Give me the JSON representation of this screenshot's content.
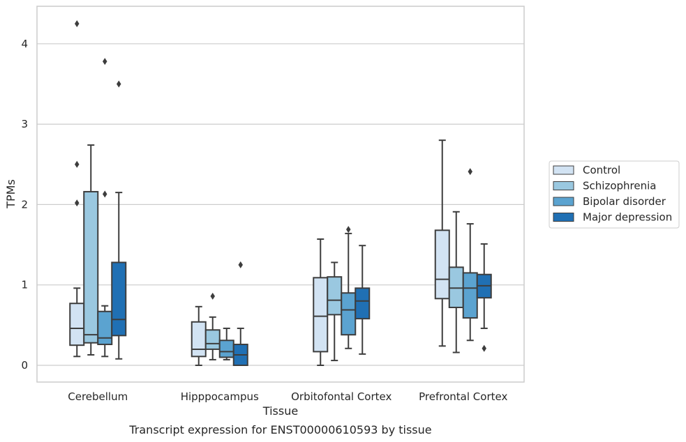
{
  "chart_data": {
    "type": "boxplot",
    "title": "",
    "caption": "Transcript expression for ENST00000610593 by tissue",
    "xlabel": "Tissue",
    "ylabel": "TPMs",
    "ylim": [
      -0.2,
      4.67
    ],
    "yticks": [
      0,
      1,
      2,
      3,
      4
    ],
    "grid": "horizontal",
    "legend_position": "right",
    "categories": [
      "Cerebellum",
      "Hipppocampus",
      "Orbitofontal Cortex",
      "Prefrontal Cortex"
    ],
    "series": [
      {
        "name": "Control",
        "color": "#d2e3f3",
        "boxes": [
          {
            "whislo": 0.11,
            "q1": 0.25,
            "med": 0.46,
            "q3": 0.77,
            "whishi": 0.96,
            "fliers": [
              4.25,
              2.5,
              2.02
            ]
          },
          {
            "whislo": 0.0,
            "q1": 0.11,
            "med": 0.2,
            "q3": 0.54,
            "whishi": 0.73,
            "fliers": []
          },
          {
            "whislo": 0.0,
            "q1": 0.17,
            "med": 0.61,
            "q3": 1.09,
            "whishi": 1.57,
            "fliers": []
          },
          {
            "whislo": 0.24,
            "q1": 0.83,
            "med": 1.07,
            "q3": 1.68,
            "whishi": 2.8,
            "fliers": []
          }
        ]
      },
      {
        "name": "Schizophrenia",
        "color": "#9ac8e0",
        "boxes": [
          {
            "whislo": 0.13,
            "q1": 0.28,
            "med": 0.38,
            "q3": 2.16,
            "whishi": 2.74,
            "fliers": []
          },
          {
            "whislo": 0.07,
            "q1": 0.2,
            "med": 0.27,
            "q3": 0.44,
            "whishi": 0.6,
            "fliers": [
              0.86
            ]
          },
          {
            "whislo": 0.06,
            "q1": 0.63,
            "med": 0.81,
            "q3": 1.1,
            "whishi": 1.28,
            "fliers": []
          },
          {
            "whislo": 0.16,
            "q1": 0.72,
            "med": 0.96,
            "q3": 1.22,
            "whishi": 1.91,
            "fliers": []
          }
        ]
      },
      {
        "name": "Bipolar disorder",
        "color": "#5ba3d0",
        "boxes": [
          {
            "whislo": 0.11,
            "q1": 0.26,
            "med": 0.34,
            "q3": 0.67,
            "whishi": 0.74,
            "fliers": [
              3.78,
              2.13
            ]
          },
          {
            "whislo": 0.07,
            "q1": 0.1,
            "med": 0.17,
            "q3": 0.31,
            "whishi": 0.46,
            "fliers": []
          },
          {
            "whislo": 0.21,
            "q1": 0.38,
            "med": 0.69,
            "q3": 0.9,
            "whishi": 1.64,
            "fliers": [
              1.69
            ]
          },
          {
            "whislo": 0.31,
            "q1": 0.59,
            "med": 0.96,
            "q3": 1.15,
            "whishi": 1.76,
            "fliers": [
              2.41
            ]
          }
        ]
      },
      {
        "name": "Major depression",
        "color": "#2070b4",
        "boxes": [
          {
            "whislo": 0.08,
            "q1": 0.37,
            "med": 0.57,
            "q3": 1.28,
            "whishi": 2.15,
            "fliers": [
              3.5
            ]
          },
          {
            "whislo": 0.0,
            "q1": 0.0,
            "med": 0.13,
            "q3": 0.26,
            "whishi": 0.46,
            "fliers": [
              1.25
            ]
          },
          {
            "whislo": 0.14,
            "q1": 0.58,
            "med": 0.8,
            "q3": 0.96,
            "whishi": 1.49,
            "fliers": []
          },
          {
            "whislo": 0.46,
            "q1": 0.84,
            "med": 0.99,
            "q3": 1.13,
            "whishi": 1.51,
            "fliers": [
              0.21
            ]
          }
        ]
      }
    ]
  }
}
